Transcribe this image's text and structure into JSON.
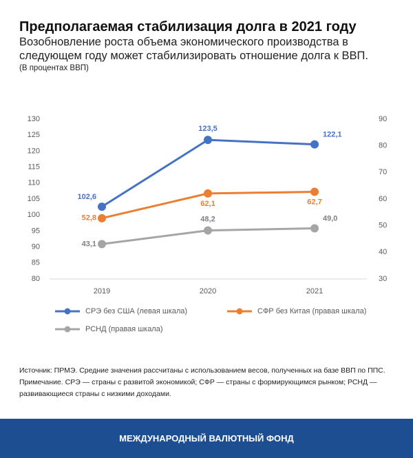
{
  "chart_data": {
    "type": "line",
    "title": "Предполагаемая стабилизация долга в 2021 году",
    "subtitle": "Возобновление роста объема экономического производства в следующем году может стабилизировать отношение долга к ВВП.",
    "unit_note": "(В процентах ВВП)",
    "categories": [
      "2019",
      "2020",
      "2021"
    ],
    "ylim": [
      80,
      130
    ],
    "yticks": [
      80,
      85,
      90,
      95,
      100,
      105,
      110,
      115,
      120,
      125,
      130
    ],
    "y2lim": [
      30,
      90
    ],
    "y2ticks": [
      30,
      40,
      50,
      60,
      70,
      80,
      90
    ],
    "grid": false,
    "series": [
      {
        "name": "СРЭ без США (левая шкала)",
        "color": "#4472c4",
        "values": [
          102.6,
          123.5,
          122.1
        ],
        "value_labels": [
          "102,6",
          "123,5",
          "122,1"
        ]
      },
      {
        "name": "СФР без Китая (правая шкала)",
        "color": "#ed7d31",
        "axis": "y2",
        "values": [
          52.8,
          62.1,
          62.7
        ],
        "value_labels": [
          "52,8",
          "62,1",
          "62,7"
        ]
      },
      {
        "name": "РСНД (правая шкала)",
        "color": "#a5a5a5",
        "axis": "y2",
        "values": [
          43.1,
          48.2,
          49.0
        ],
        "value_labels": [
          "43,1",
          "48,2",
          "49,0"
        ]
      }
    ],
    "source": "Источник: ПРМЭ. Средние значения рассчитаны с использованием весов, полученных на базе ВВП по ППС.",
    "note": "Примечание. СРЭ  — страны с развитой экономикой; СФР — страны с формирующимся рынком; РСНД — развивающиеся страны с низкими доходами.",
    "footer": "МЕЖДУНАРОДНЫЙ ВАЛЮТНЫЙ ФОНД"
  }
}
